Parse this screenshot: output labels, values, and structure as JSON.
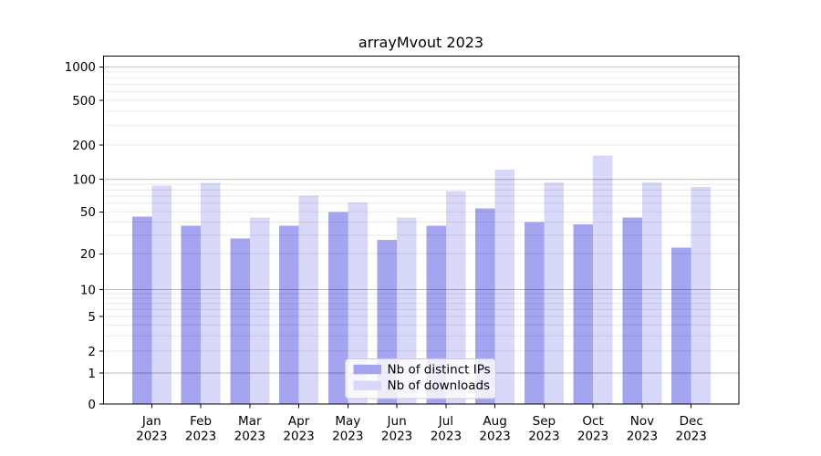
{
  "title": "arrayMvout 2023",
  "chart_data": {
    "type": "bar",
    "title": "arrayMvout 2023",
    "categories": [
      "Jan",
      "Feb",
      "Mar",
      "Apr",
      "May",
      "Jun",
      "Jul",
      "Aug",
      "Sep",
      "Oct",
      "Nov",
      "Dec"
    ],
    "category_year": "2023",
    "series": [
      {
        "name": "Nb of distinct IPs",
        "color": "#a4a4f0",
        "values": [
          45,
          37,
          28,
          37,
          50,
          27,
          37,
          54,
          40,
          38,
          44,
          23
        ]
      },
      {
        "name": "Nb of downloads",
        "color": "#d8d8f8",
        "values": [
          88,
          93,
          44,
          71,
          61,
          44,
          78,
          122,
          94,
          162,
          94,
          85
        ]
      }
    ],
    "xlabel": "",
    "ylabel": "",
    "y_ticks": [
      0,
      1,
      2,
      5,
      10,
      20,
      50,
      100,
      200,
      500,
      1000
    ],
    "y_scale": "symlog",
    "ylim": [
      0,
      1250
    ],
    "grid": "horizontal major+minor",
    "legend_position": "inside-bottom-center"
  }
}
